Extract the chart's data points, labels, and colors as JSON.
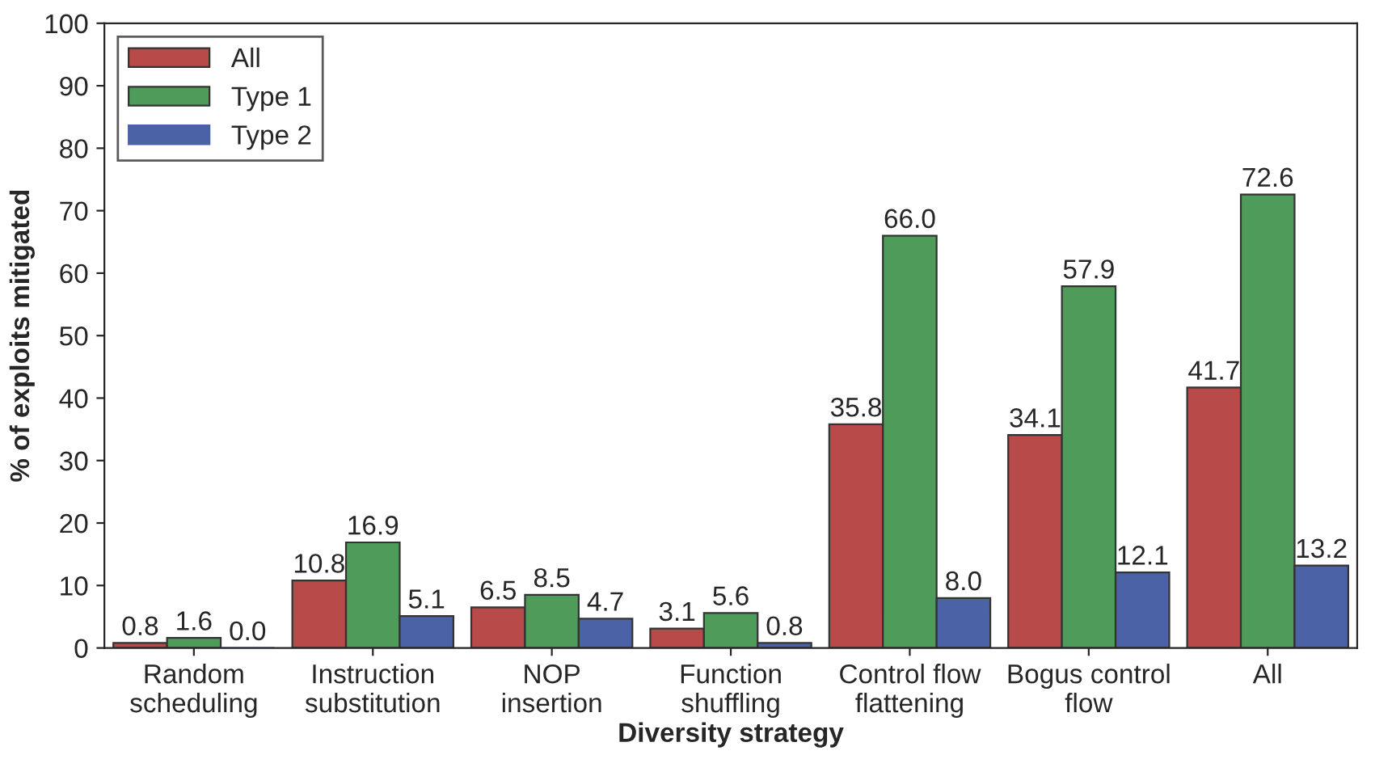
{
  "chart_data": {
    "type": "bar",
    "xlabel": "Diversity strategy",
    "ylabel": "% of exploits mitigated",
    "categories": [
      "Random\nscheduling",
      "Instruction\nsubstitution",
      "NOP\ninsertion",
      "Function\nshuffling",
      "Control flow\nflattening",
      "Bogus control\nflow",
      "All"
    ],
    "series": [
      {
        "name": "All",
        "color": "#b94a4a",
        "values": [
          0.8,
          10.8,
          6.5,
          3.1,
          35.8,
          34.1,
          41.7
        ]
      },
      {
        "name": "Type 1",
        "color": "#4f9c5a",
        "values": [
          1.6,
          16.9,
          8.5,
          5.6,
          66.0,
          57.9,
          72.6
        ]
      },
      {
        "name": "Type 2",
        "color": "#4b63a6",
        "values": [
          0.0,
          5.1,
          4.7,
          0.8,
          8.0,
          12.1,
          13.2
        ]
      }
    ],
    "value_labels": [
      [
        "0.8",
        "10.8",
        "6.5",
        "3.1",
        "35.8",
        "34.1",
        "41.7"
      ],
      [
        "1.6",
        "16.9",
        "8.5",
        "5.6",
        "66.0",
        "57.9",
        "72.6"
      ],
      [
        "0.0",
        "5.1",
        "4.7",
        "0.8",
        "8.0",
        "12.1",
        "13.2"
      ]
    ],
    "ylim": [
      0,
      100
    ],
    "yticks": [
      0,
      10,
      20,
      30,
      40,
      50,
      60,
      70,
      80,
      90,
      100
    ],
    "grid": false,
    "legend": "top left"
  }
}
